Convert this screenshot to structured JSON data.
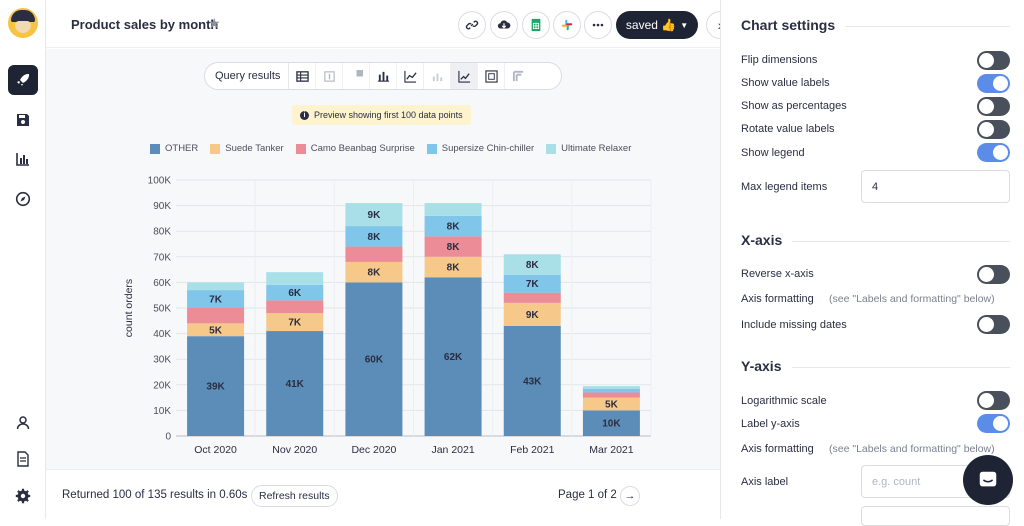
{
  "header": {
    "title": "Product sales by month",
    "saved_label": "saved 👍"
  },
  "toolbar": {
    "query_results_label": "Query results"
  },
  "preview_note": "Preview showing first 100 data points",
  "chart_data": {
    "type": "bar",
    "stacked": true,
    "categories": [
      "Oct 2020",
      "Nov 2020",
      "Dec 2020",
      "Jan 2021",
      "Feb 2021",
      "Mar 2021"
    ],
    "ylabel": "count orders",
    "ylim": [
      0,
      100000
    ],
    "yticks": [
      "0",
      "10K",
      "20K",
      "30K",
      "40K",
      "50K",
      "60K",
      "70K",
      "80K",
      "90K",
      "100K"
    ],
    "grid": true,
    "legend_placement": "top",
    "series": [
      {
        "name": "OTHER",
        "color": "#5b8db8",
        "values": [
          39000,
          41000,
          60000,
          62000,
          43000,
          10000
        ],
        "labels": [
          "39K",
          "41K",
          "60K",
          "62K",
          "43K",
          "10K"
        ]
      },
      {
        "name": "Suede Tanker",
        "color": "#f6c98a",
        "values": [
          5000,
          7000,
          8000,
          8000,
          9000,
          5000
        ],
        "labels": [
          "5K",
          "7K",
          "8K",
          "8K",
          "9K",
          "5K"
        ]
      },
      {
        "name": "Camo Beanbag Surprise",
        "color": "#ec8c96",
        "values": [
          6000,
          5000,
          6000,
          8000,
          4000,
          2000
        ],
        "labels": [
          "",
          "",
          "",
          "8K",
          "",
          ""
        ]
      },
      {
        "name": "Supersize Chin-chiller",
        "color": "#7fc6ea",
        "values": [
          7000,
          6000,
          8000,
          8000,
          7000,
          1500
        ],
        "labels": [
          "7K",
          "6K",
          "8K",
          "8K",
          "7K",
          ""
        ]
      },
      {
        "name": "Ultimate Relaxer",
        "color": "#a9e0e8",
        "values": [
          3000,
          5000,
          9000,
          5000,
          8000,
          1000
        ],
        "labels": [
          "",
          "",
          "9K",
          "",
          "8K",
          ""
        ]
      }
    ]
  },
  "footer": {
    "returned_text": "Returned 100 of 135 results in 0.60s",
    "refresh_label": "Refresh results",
    "page_text": "Page 1 of 2"
  },
  "settings": {
    "title": "Chart settings",
    "toggles": [
      {
        "label": "Flip dimensions",
        "on": false
      },
      {
        "label": "Show value labels",
        "on": true
      },
      {
        "label": "Show as percentages",
        "on": false
      },
      {
        "label": "Rotate value labels",
        "on": false
      },
      {
        "label": "Show legend",
        "on": true
      }
    ],
    "max_legend_label": "Max legend items",
    "max_legend_value": "4",
    "xaxis": {
      "title": "X-axis",
      "reverse_label": "Reverse x-axis",
      "reverse_on": false,
      "formatting_label": "Axis formatting",
      "formatting_hint": "(see \"Labels and formatting\" below)",
      "missing_label": "Include missing dates",
      "missing_on": false
    },
    "yaxis": {
      "title": "Y-axis",
      "log_label": "Logarithmic scale",
      "log_on": false,
      "label_label": "Label y-axis",
      "label_on": true,
      "formatting_label": "Axis formatting",
      "formatting_hint": "(see \"Labels and formatting\" below)",
      "axis_label_label": "Axis label",
      "axis_label_placeholder": "e.g. count"
    }
  }
}
